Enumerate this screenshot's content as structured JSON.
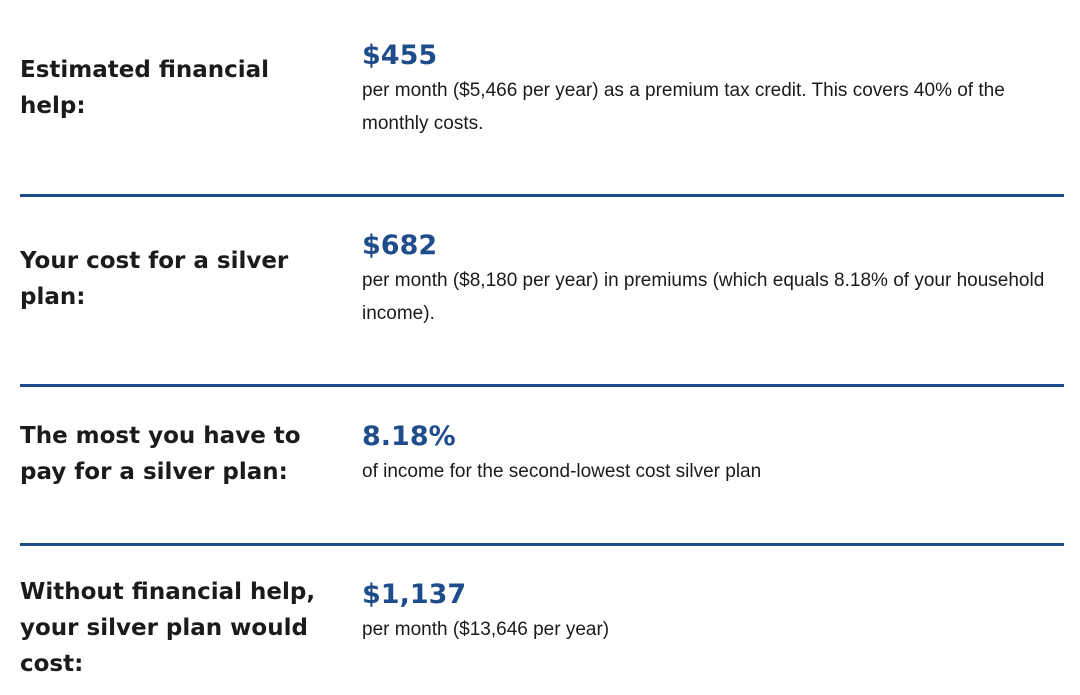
{
  "colors": {
    "accent": "#1f4d8c",
    "text": "#1b1b1b",
    "divider": "#1f4d8c",
    "background": "#ffffff"
  },
  "rows": [
    {
      "label": "Estimated financial help:",
      "amount": "$455",
      "description": "per month ($5,466 per year) as a premium tax credit. This covers 40% of the monthly costs."
    },
    {
      "label": "Your cost for a silver plan:",
      "amount": "$682",
      "description": "per month ($8,180 per year) in premiums (which equals 8.18% of your household income)."
    },
    {
      "label": "The most you have to pay for a silver plan:",
      "amount": "8.18%",
      "description": "of income for the second-lowest cost silver plan"
    },
    {
      "label": "Without financial help, your silver plan would cost:",
      "amount": "$1,137",
      "description": "per month ($13,646 per year)"
    }
  ]
}
